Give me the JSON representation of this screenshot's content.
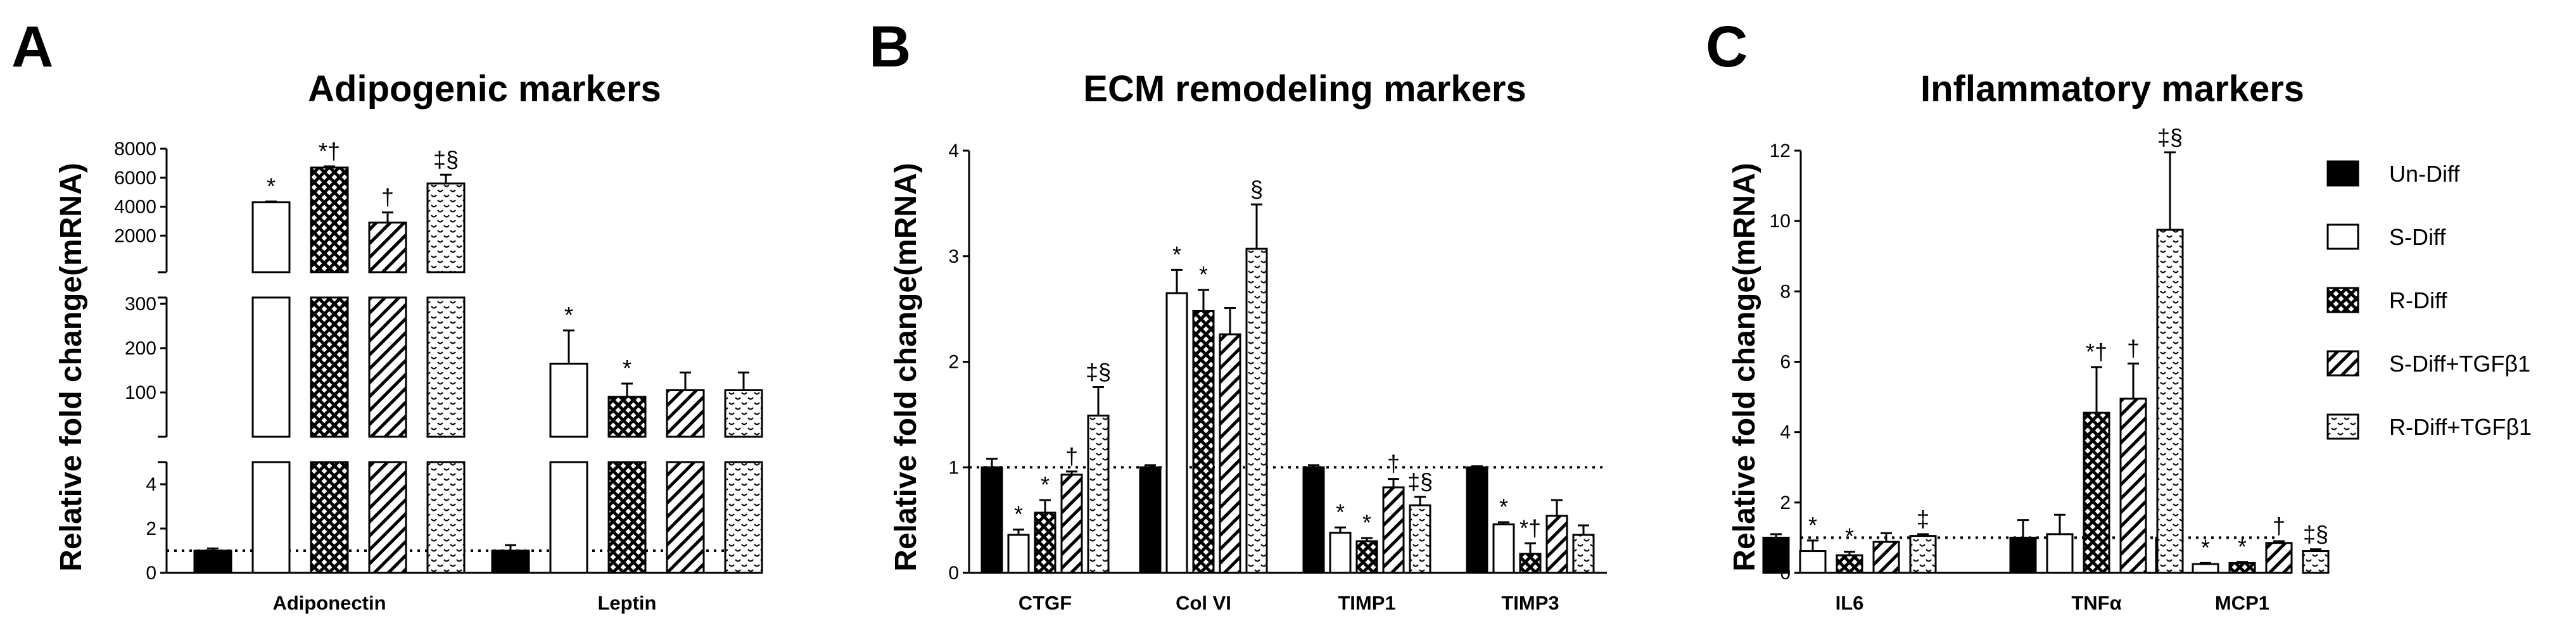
{
  "colors": {
    "black": "#000000",
    "white": "#ffffff"
  },
  "legend": [
    {
      "name": "Un-Diff",
      "pattern": "solid-black"
    },
    {
      "name": "S-Diff",
      "pattern": "white"
    },
    {
      "name": "R-Diff",
      "pattern": "crosshatch"
    },
    {
      "name": "S-Diff+TGFβ1",
      "pattern": "diagonal"
    },
    {
      "name": "R-Diff+TGFβ1",
      "pattern": "dotted-wave"
    }
  ],
  "chart_data": [
    {
      "type": "bar",
      "panel": "A",
      "title": "Adipogenic markers",
      "ylabel": "Relative fold change(mRNA)",
      "broken_axis": true,
      "segments": [
        {
          "ylim": [
            0,
            5
          ],
          "ticks": [
            0,
            2,
            4
          ]
        },
        {
          "ylim": [
            0,
            300
          ],
          "ticks": [
            100,
            200,
            300
          ]
        },
        {
          "ylim": [
            0,
            8000
          ],
          "ticks": [
            2000,
            4000,
            6000,
            8000
          ]
        }
      ],
      "reference_line": 1,
      "categories": [
        "Adiponectin",
        "Leptin"
      ],
      "series": [
        {
          "name": "Un-Diff",
          "values": [
            1.0,
            1.0
          ],
          "errors": [
            0.1,
            0.25
          ],
          "sig": [
            "",
            ""
          ]
        },
        {
          "name": "S-Diff",
          "values": [
            4300,
            165
          ],
          "errors": [
            60,
            75
          ],
          "sig": [
            "*",
            "*"
          ]
        },
        {
          "name": "R-Diff",
          "values": [
            6700,
            90
          ],
          "errors": [
            80,
            30
          ],
          "sig": [
            "*†",
            "*"
          ]
        },
        {
          "name": "S-Diff+TGFβ1",
          "values": [
            2900,
            105
          ],
          "errors": [
            700,
            40
          ],
          "sig": [
            "†",
            ""
          ]
        },
        {
          "name": "R-Diff+TGFβ1",
          "values": [
            5600,
            105
          ],
          "errors": [
            600,
            40
          ],
          "sig": [
            "‡§",
            ""
          ]
        }
      ]
    },
    {
      "type": "bar",
      "panel": "B",
      "title": "ECM remodeling markers",
      "ylabel": "Relative fold change(mRNA)",
      "ylim": [
        0,
        4
      ],
      "ticks": [
        0,
        1,
        2,
        3,
        4
      ],
      "reference_line": 1,
      "categories": [
        "CTGF",
        "Col VI",
        "TIMP1",
        "TIMP3"
      ],
      "series": [
        {
          "name": "Un-Diff",
          "values": [
            1.0,
            1.0,
            1.0,
            1.0
          ],
          "errors": [
            0.08,
            0.02,
            0.02,
            0.01
          ],
          "sig": [
            "",
            "",
            "",
            ""
          ]
        },
        {
          "name": "S-Diff",
          "values": [
            0.36,
            2.65,
            0.38,
            0.46
          ],
          "errors": [
            0.05,
            0.22,
            0.05,
            0.02
          ],
          "sig": [
            "*",
            "*",
            "*",
            "*"
          ]
        },
        {
          "name": "R-Diff",
          "values": [
            0.57,
            2.48,
            0.3,
            0.18
          ],
          "errors": [
            0.12,
            0.2,
            0.03,
            0.1
          ],
          "sig": [
            "*",
            "*",
            "*",
            "*†"
          ]
        },
        {
          "name": "S-Diff+TGFβ1",
          "values": [
            0.93,
            2.26,
            0.81,
            0.54
          ],
          "errors": [
            0.03,
            0.25,
            0.08,
            0.15
          ],
          "sig": [
            "†",
            "",
            "†",
            ""
          ]
        },
        {
          "name": "R-Diff+TGFβ1",
          "values": [
            1.49,
            3.07,
            0.64,
            0.36
          ],
          "errors": [
            0.27,
            0.42,
            0.08,
            0.09
          ],
          "sig": [
            "‡§",
            "§",
            "‡§",
            ""
          ]
        }
      ]
    },
    {
      "type": "bar",
      "panel": "C",
      "title": "Inflammatory markers",
      "ylabel": "Relative fold change(mRNA)",
      "ylim": [
        0,
        12
      ],
      "ticks": [
        0,
        2,
        4,
        6,
        8,
        10,
        12
      ],
      "reference_line": 1,
      "categories": [
        "IL6",
        "TNFα",
        "MCP1"
      ],
      "series": [
        {
          "name": "Un-Diff",
          "values": [
            1.0,
            1.0,
            1.0
          ],
          "errors": [
            0.1,
            0.5,
            0.1
          ],
          "sig": [
            "",
            "",
            ""
          ]
        },
        {
          "name": "S-Diff",
          "values": [
            0.62,
            1.1,
            0.25
          ],
          "errors": [
            0.3,
            0.55,
            0.03
          ],
          "sig": [
            "*",
            "",
            "*"
          ]
        },
        {
          "name": "R-Diff",
          "values": [
            0.5,
            4.55,
            0.28
          ],
          "errors": [
            0.1,
            1.3,
            0.03
          ],
          "sig": [
            "*",
            "*†",
            "*"
          ]
        },
        {
          "name": "S-Diff+TGFβ1",
          "values": [
            0.88,
            4.95,
            0.85
          ],
          "errors": [
            0.25,
            1.0,
            0.05
          ],
          "sig": [
            "",
            "†",
            "†"
          ]
        },
        {
          "name": "R-Diff+TGFβ1",
          "values": [
            1.05,
            9.75,
            0.62
          ],
          "errors": [
            0.05,
            2.2,
            0.05
          ],
          "sig": [
            "‡",
            "‡§",
            "‡§"
          ]
        }
      ]
    }
  ]
}
